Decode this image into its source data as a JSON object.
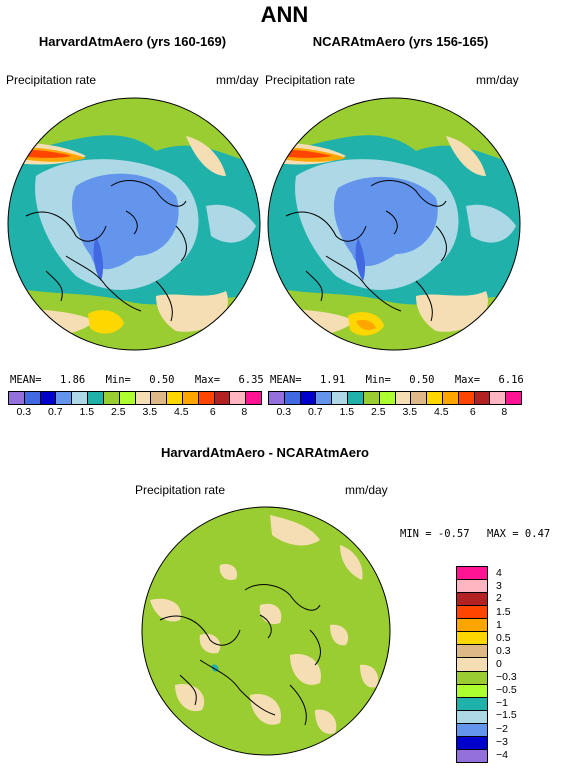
{
  "title": "ANN",
  "panels": [
    {
      "name": "HarvardAtmAero (yrs 160-169)",
      "variable": "Precipitation rate",
      "units": "mm/day",
      "stats": {
        "mean_label": "MEAN=",
        "mean": "1.86",
        "min_label": "Min=",
        "min": "0.50",
        "max_label": "Max=",
        "max": "6.35"
      }
    },
    {
      "name": "NCARAtmAero (yrs 156-165)",
      "variable": "Precipitation rate",
      "units": "mm/day",
      "stats": {
        "mean_label": "MEAN=",
        "mean": "1.91",
        "min_label": "Min=",
        "min": "0.50",
        "max_label": "Max=",
        "max": "6.16"
      }
    }
  ],
  "colorbar": {
    "colors": [
      "#9370db",
      "#4169e1",
      "#0000cd",
      "#6495ed",
      "#add8e6",
      "#20b2aa",
      "#9acd32",
      "#adff2f",
      "#f5deb3",
      "#deb887",
      "#ffd700",
      "#ffa500",
      "#ff4500",
      "#b22222",
      "#ffb6c1",
      "#ff1493"
    ],
    "labels": [
      "0.3",
      "0.7",
      "1.5",
      "2.5",
      "3.5",
      "4.5",
      "6",
      "8"
    ]
  },
  "diff": {
    "name": "HarvardAtmAero - NCARAtmAero",
    "variable": "Precipitation rate",
    "units": "mm/day",
    "min_text": "MIN =   -0.57",
    "max_text": "MAX =    0.47",
    "colors_top_to_bottom": [
      "#ff1493",
      "#ffb6c1",
      "#b22222",
      "#ff4500",
      "#ffa500",
      "#ffd700",
      "#deb887",
      "#f5deb3",
      "#9acd32",
      "#adff2f",
      "#20b2aa",
      "#add8e6",
      "#6495ed",
      "#0000cd",
      "#9370db"
    ],
    "labels_top_to_bottom": [
      "4",
      "3",
      "2",
      "1.5",
      "1",
      "0.5",
      "0.3",
      "0",
      "−0.3",
      "−0.5",
      "−1",
      "−1.5",
      "−2",
      "−3",
      "−4"
    ]
  }
}
